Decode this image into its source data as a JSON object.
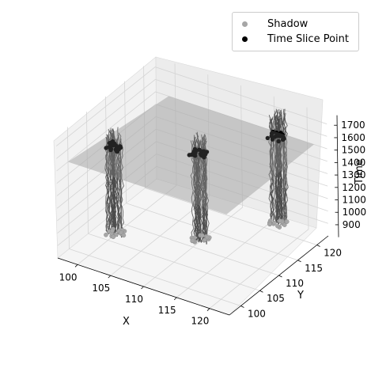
{
  "chart_data": {
    "type": "scatter3d",
    "title": "",
    "xlabel": "X",
    "ylabel": "Y",
    "zlabel": "Time",
    "xlim": [
      97,
      123
    ],
    "ylim": [
      97,
      123
    ],
    "zlim": [
      800,
      1780
    ],
    "x_ticks": [
      "100",
      "105",
      "110",
      "115",
      "120"
    ],
    "y_ticks": [
      "100",
      "105",
      "110",
      "115",
      "120"
    ],
    "z_ticks": [
      "900",
      "1000",
      "1100",
      "1200",
      "1300",
      "1400",
      "1500",
      "1600",
      "1700"
    ],
    "grid": true,
    "legend_position": "top-right",
    "time_slice": 1500,
    "series": [
      {
        "name": "Shadow",
        "color": "#a6a6a6"
      },
      {
        "name": "Time Slice Point",
        "color": "#000000"
      }
    ],
    "clusters": [
      {
        "x": 100,
        "y": 107,
        "z_min": 810,
        "z_max": 1650
      },
      {
        "x": 110,
        "y": 112,
        "z_min": 810,
        "z_max": 1660
      },
      {
        "x": 116,
        "y": 122,
        "z_min": 820,
        "z_max": 1720
      }
    ]
  }
}
